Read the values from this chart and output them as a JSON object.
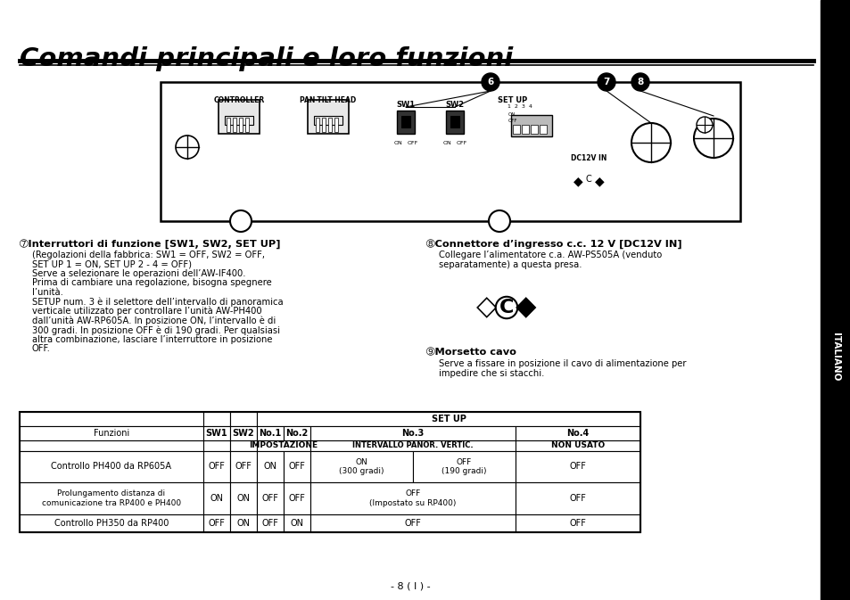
{
  "title": "Comandi principali e loro funzioni",
  "bg_color": "#ffffff",
  "text_color": "#000000",
  "sidebar_text": "ITALIANO",
  "section6_title": "➆Interruttori di funzione [SW1, SW2, SET UP]",
  "section6_body": "(Regolazioni della fabbrica: SW1 = OFF, SW2 = OFF,\nSET UP 1 = ON, SET UP 2 - 4 = OFF)\nServe a selezionare le operazioni dell’AW-IF400.\nPrima di cambiare una regolazione, bisogna spegnere\nl’unità.\nSETUP num. 3 è il selettore dell’intervallo di panoramica\nverticale utilizzato per controllare l’unità AW-PH400\ndall’unità AW-RP605A. In posizione ON, l’intervallo è di\n300 gradi. In posizione OFF è di 190 gradi. Per qualsiasi\naltra combinazione, lasciare l’interruttore in posizione\nOFF.",
  "section7_title": "➇Connettore d’ingresso c.c. 12 V [DC12V IN]",
  "section7_body": "Collegare l’alimentatore c.a. AW-PS505A (venduto\nseparatamente) a questa presa.",
  "section8_title": "➈Morsetto cavo",
  "section8_body": "Serve a fissare in posizione il cavo di alimentazione per\nimpedire che si stacchi.",
  "footer": "- 8 ( I ) -"
}
